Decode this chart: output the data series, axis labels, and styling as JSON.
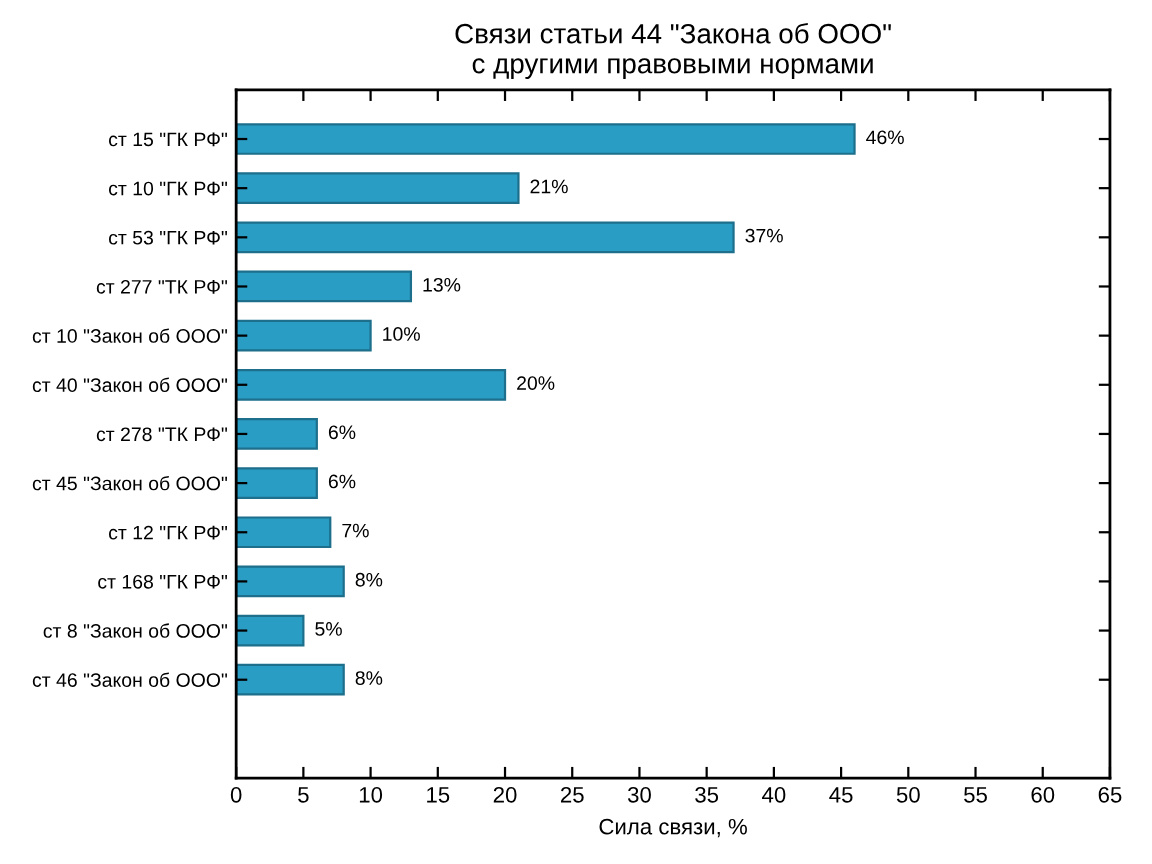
{
  "chart_data": {
    "type": "bar",
    "orientation": "horizontal",
    "title": "Связи статьи 44 \"Закона об ООО\"\nс другими правовыми нормами",
    "xlabel": "Сила связи, %",
    "categories": [
      "ст 15 \"ГК РФ\"",
      "ст 10 \"ГК РФ\"",
      "ст 53 \"ГК РФ\"",
      "ст 277 \"ТК РФ\"",
      "ст 10 \"Закон об ООО\"",
      "ст 40 \"Закон об ООО\"",
      "ст 278 \"ТК РФ\"",
      "ст 45 \"Закон об ООО\"",
      "ст 12 \"ГК РФ\"",
      "ст 168 \"ГК РФ\"",
      "ст 8 \"Закон об ООО\"",
      "ст 46 \"Закон об ООО\""
    ],
    "values": [
      46,
      21,
      37,
      13,
      10,
      20,
      6,
      6,
      7,
      8,
      5,
      8
    ],
    "value_labels": [
      "46%",
      "21%",
      "37%",
      "13%",
      "10%",
      "20%",
      "6%",
      "6%",
      "7%",
      "8%",
      "5%",
      "8%"
    ],
    "color": "#2a9dc4",
    "xlim": [
      0,
      65
    ],
    "xticks": [
      0,
      5,
      10,
      15,
      20,
      25,
      30,
      35,
      40,
      45,
      50,
      55,
      60,
      65
    ],
    "grid": false,
    "legend": false
  }
}
